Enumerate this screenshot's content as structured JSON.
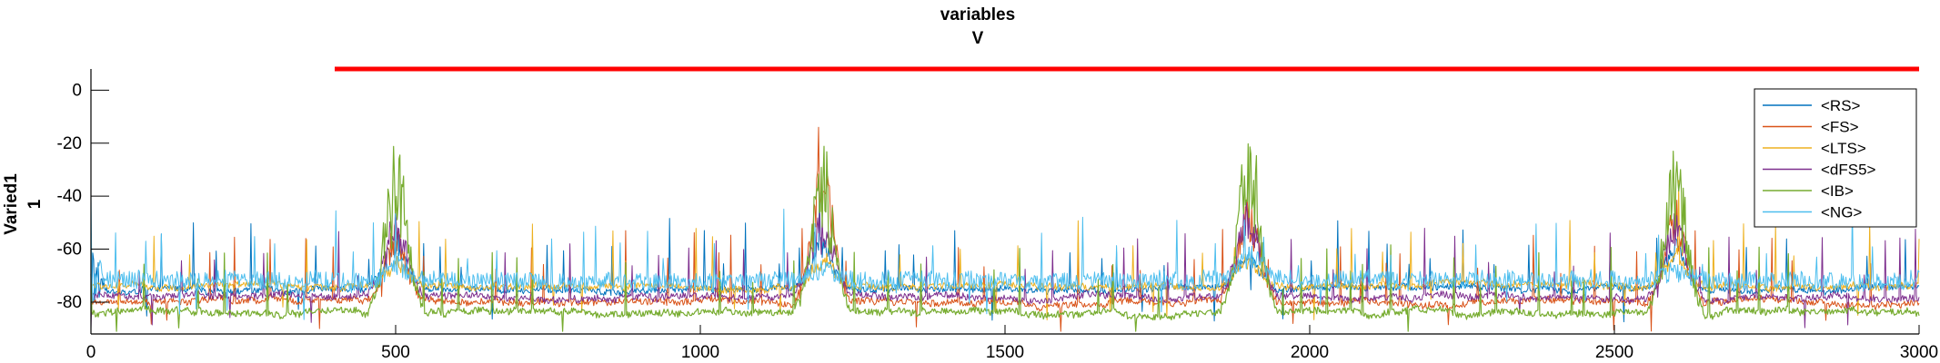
{
  "chart_data": {
    "type": "line",
    "title": "variables",
    "subtitle": "V",
    "xlabel": "",
    "ylabel": "Varied1",
    "ylabel2": "1",
    "xlim": [
      0,
      3000
    ],
    "ylim": [
      -92,
      8
    ],
    "xticks": [
      0,
      500,
      1000,
      1500,
      2000,
      2500,
      3000
    ],
    "yticks": [
      0,
      -20,
      -40,
      -60,
      -80
    ],
    "grid": false,
    "legend_position": "top-right",
    "stim_bar": {
      "x_start": 400,
      "x_end": 3000,
      "y": 8,
      "color": "#ff0000"
    },
    "series": [
      {
        "name": "<RS>",
        "color": "#0072BD",
        "baseline": -75,
        "bursts": [
          [
            500,
            -55
          ],
          [
            1200,
            -55
          ],
          [
            1900,
            -58
          ],
          [
            2600,
            -56
          ]
        ]
      },
      {
        "name": "<FS>",
        "color": "#D95319",
        "baseline": -80,
        "bursts": [
          [
            500,
            -50
          ],
          [
            1200,
            -25
          ],
          [
            1900,
            -40
          ],
          [
            2600,
            -42
          ]
        ]
      },
      {
        "name": "<LTS>",
        "color": "#EDB120",
        "baseline": -74,
        "bursts": [
          [
            500,
            -62
          ],
          [
            1200,
            -62
          ],
          [
            1900,
            -60
          ],
          [
            2600,
            -60
          ]
        ]
      },
      {
        "name": "<dFS5>",
        "color": "#7E2F8E",
        "baseline": -78,
        "bursts": [
          [
            500,
            -45
          ],
          [
            1200,
            -45
          ],
          [
            1900,
            -40
          ],
          [
            2600,
            -45
          ]
        ]
      },
      {
        "name": "<IB>",
        "color": "#77AC30",
        "baseline": -84,
        "bursts": [
          [
            500,
            -20
          ],
          [
            1200,
            -22
          ],
          [
            1900,
            -18
          ],
          [
            2600,
            -20
          ]
        ]
      },
      {
        "name": "<NG>",
        "color": "#4DBEEE",
        "baseline": -72,
        "bursts": [
          [
            500,
            -65
          ],
          [
            1200,
            -65
          ],
          [
            1900,
            -62
          ],
          [
            2600,
            -65
          ]
        ]
      }
    ]
  }
}
